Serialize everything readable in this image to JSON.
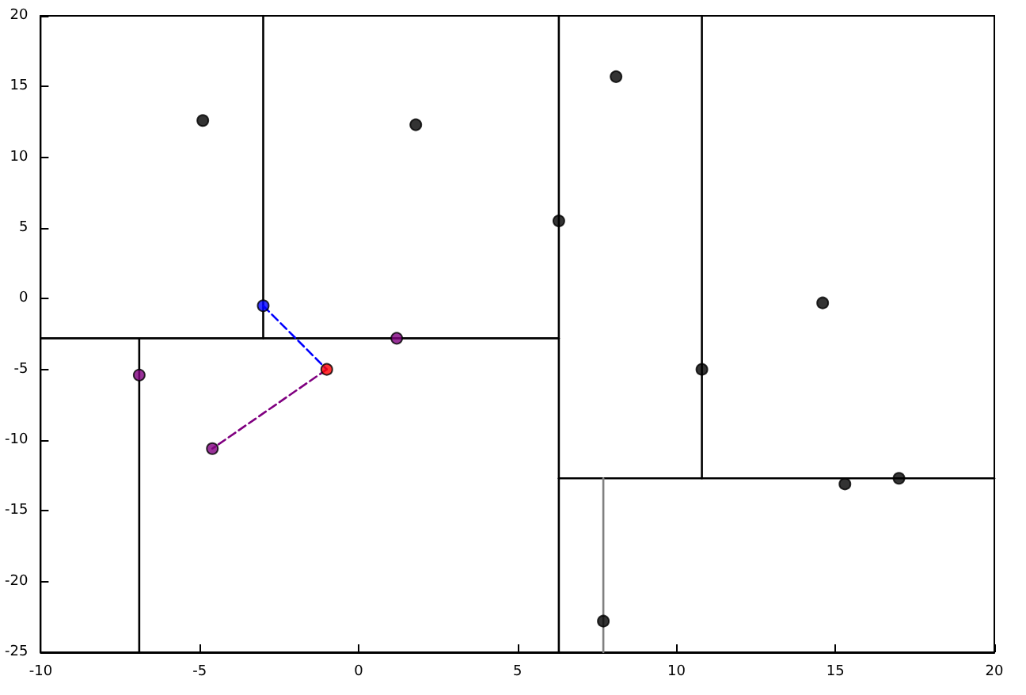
{
  "chart_data": {
    "type": "scatter",
    "xlim": [
      -10,
      20
    ],
    "ylim": [
      -25,
      20
    ],
    "xticks": [
      -10,
      -5,
      0,
      5,
      10,
      15,
      20
    ],
    "yticks": [
      -25,
      -20,
      -15,
      -10,
      -5,
      0,
      5,
      10,
      15,
      20
    ],
    "grid": false,
    "marker": "circle",
    "series": [
      {
        "type": "line",
        "marker": "none",
        "line_style": "solid",
        "color": "#000000",
        "x": [
          6.3,
          6.3
        ],
        "values": [
          -25,
          20
        ]
      },
      {
        "type": "line",
        "marker": "none",
        "line_style": "solid",
        "color": "#000000",
        "x": [
          -10,
          6.3
        ],
        "values": [
          -2.8,
          -2.8
        ]
      },
      {
        "type": "line",
        "marker": "none",
        "line_style": "solid",
        "color": "#000000",
        "x": [
          -3,
          -3
        ],
        "values": [
          -2.8,
          20
        ]
      },
      {
        "type": "line",
        "marker": "none",
        "line_style": "solid",
        "color": "#000000",
        "x": [
          -6.9,
          -6.9
        ],
        "values": [
          -25,
          -2.8
        ]
      },
      {
        "type": "line",
        "marker": "none",
        "line_style": "solid",
        "color": "#000000",
        "x": [
          6.3,
          20
        ],
        "values": [
          -12.7,
          -12.7
        ]
      },
      {
        "type": "line",
        "marker": "none",
        "line_style": "solid",
        "color": "#000000",
        "x": [
          10.8,
          10.8
        ],
        "values": [
          -12.7,
          20
        ]
      },
      {
        "type": "line",
        "marker": "none",
        "line_style": "solid",
        "color": "#808080",
        "x": [
          7.7,
          7.7
        ],
        "values": [
          -25,
          -12.7
        ]
      },
      {
        "type": "line",
        "marker": "none",
        "line_style": "dashed",
        "color": "#0000ff",
        "x": [
          -3,
          -1
        ],
        "values": [
          -0.5,
          -5
        ]
      },
      {
        "type": "line",
        "marker": "none",
        "line_style": "dashed",
        "color": "#800080",
        "x": [
          -1,
          -4.6
        ],
        "values": [
          -5,
          -10.6
        ]
      },
      {
        "color": "#000000",
        "x": [
          -4.9,
          1.8,
          6.3,
          8.1,
          14.6,
          10.8,
          15.3,
          17.0,
          7.7
        ],
        "values": [
          12.6,
          12.3,
          5.5,
          15.7,
          -0.3,
          -5,
          -13.1,
          -12.7,
          -22.8
        ]
      },
      {
        "color": "#800080",
        "x": [
          1.2,
          -6.9,
          -4.6
        ],
        "values": [
          -2.8,
          -5.4,
          -10.6
        ]
      },
      {
        "color": "#0000ff",
        "x": [
          -3
        ],
        "values": [
          -0.5
        ]
      },
      {
        "color": "#ff0000",
        "x": [
          -1
        ],
        "values": [
          -5
        ]
      }
    ]
  }
}
